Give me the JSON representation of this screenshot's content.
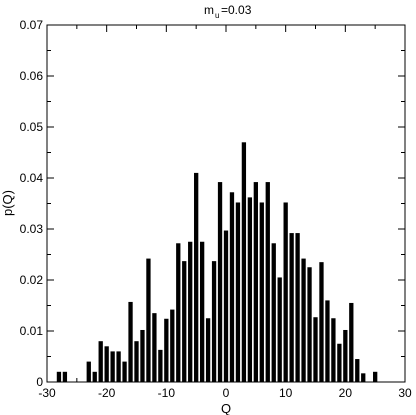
{
  "chart_data": {
    "type": "bar",
    "title_main": "m",
    "title_sub": "u",
    "title_suffix": "=0.03",
    "xlabel": "Q",
    "ylabel": "p(Q)",
    "xlim": [
      -30,
      30
    ],
    "ylim": [
      0,
      0.07
    ],
    "xticks": [
      "-30",
      "-20",
      "-10",
      "0",
      "10",
      "20",
      "30"
    ],
    "yticks": [
      "0",
      "0.01",
      "0.02",
      "0.03",
      "0.04",
      "0.05",
      "0.06",
      "0.07"
    ],
    "grid": false,
    "bar_color": "#000000",
    "x": [
      -28,
      -27,
      -23,
      -22,
      -21,
      -20,
      -19,
      -18,
      -17,
      -16,
      -15,
      -14,
      -13,
      -12,
      -11,
      -10,
      -9,
      -8,
      -7,
      -6,
      -5,
      -4,
      -3,
      -2,
      -1,
      0,
      1,
      2,
      3,
      4,
      5,
      6,
      7,
      8,
      9,
      10,
      11,
      12,
      13,
      14,
      15,
      16,
      17,
      18,
      19,
      20,
      21,
      22,
      23,
      25
    ],
    "values": [
      0.002,
      0.002,
      0.004,
      0.002,
      0.008,
      0.007,
      0.006,
      0.006,
      0.004,
      0.0157,
      0.008,
      0.0102,
      0.0242,
      0.0135,
      0.0063,
      0.0124,
      0.0142,
      0.0272,
      0.0237,
      0.0275,
      0.041,
      0.0275,
      0.0125,
      0.0237,
      0.0392,
      0.0297,
      0.0372,
      0.0352,
      0.047,
      0.0362,
      0.0392,
      0.0352,
      0.0392,
      0.0272,
      0.0205,
      0.0352,
      0.0292,
      0.0292,
      0.0242,
      0.0225,
      0.0127,
      0.0235,
      0.016,
      0.0125,
      0.0075,
      0.0102,
      0.0155,
      0.0045,
      0.0017,
      0.002
    ]
  }
}
